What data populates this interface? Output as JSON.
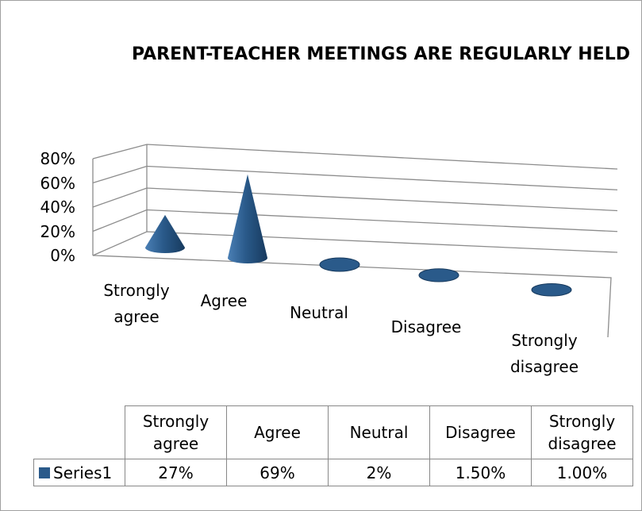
{
  "chart_data": {
    "type": "cone3d",
    "title": "PARENT-TEACHER MEETINGS ARE REGULARLY HELD",
    "categories": [
      "Strongly agree",
      "Agree",
      "Neutral",
      "Disagree",
      "Strongly disagree"
    ],
    "series": [
      {
        "name": "Series1",
        "color": "#2a5a8a",
        "values": [
          27,
          69,
          2,
          1.5,
          1.0
        ],
        "value_labels": [
          "27%",
          "69%",
          "2%",
          "1.50%",
          "1.00%"
        ]
      }
    ],
    "ylim": [
      0,
      80
    ],
    "yticks": [
      {
        "value": 0,
        "label": "0%"
      },
      {
        "value": 20,
        "label": "20%"
      },
      {
        "value": 40,
        "label": "40%"
      },
      {
        "value": 60,
        "label": "60%"
      },
      {
        "value": 80,
        "label": "80%"
      }
    ],
    "grid": true,
    "data_table": true
  }
}
